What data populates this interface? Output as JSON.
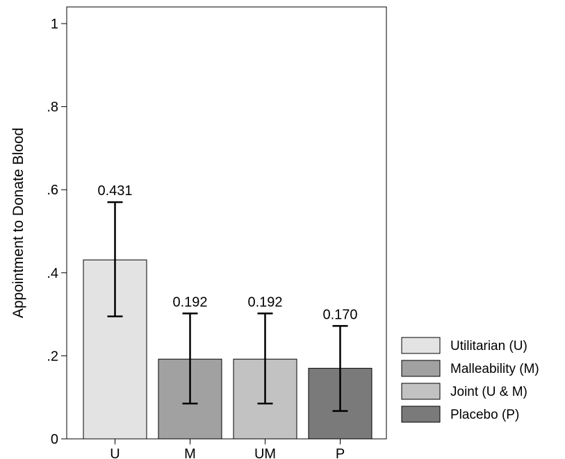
{
  "chart_data": {
    "type": "bar",
    "title": "",
    "xlabel": "",
    "ylabel": "Appointment to Donate Blood",
    "ylim": [
      0,
      1
    ],
    "yticks": [
      {
        "value": 0,
        "label": "0"
      },
      {
        "value": 0.2,
        "label": ".2"
      },
      {
        "value": 0.4,
        "label": ".4"
      },
      {
        "value": 0.6,
        "label": ".6"
      },
      {
        "value": 0.8,
        "label": ".8"
      },
      {
        "value": 1,
        "label": "1"
      }
    ],
    "categories": [
      "U",
      "M",
      "UM",
      "P"
    ],
    "values": [
      0.431,
      0.192,
      0.192,
      0.17
    ],
    "value_labels": [
      "0.431",
      "0.192",
      "0.192",
      "0.170"
    ],
    "error_low": [
      0.295,
      0.085,
      0.085,
      0.067
    ],
    "error_high": [
      0.57,
      0.302,
      0.302,
      0.272
    ],
    "colors": [
      "#e3e3e3",
      "#a1a1a1",
      "#c2c2c2",
      "#7a7a7a"
    ],
    "grid": false,
    "legend": {
      "placement": "right",
      "entries": [
        {
          "label": "Utilitarian (U)",
          "color": "#e3e3e3"
        },
        {
          "label": "Malleability (M)",
          "color": "#a1a1a1"
        },
        {
          "label": "Joint (U & M)",
          "color": "#c2c2c2"
        },
        {
          "label": "Placebo (P)",
          "color": "#7a7a7a"
        }
      ]
    }
  }
}
